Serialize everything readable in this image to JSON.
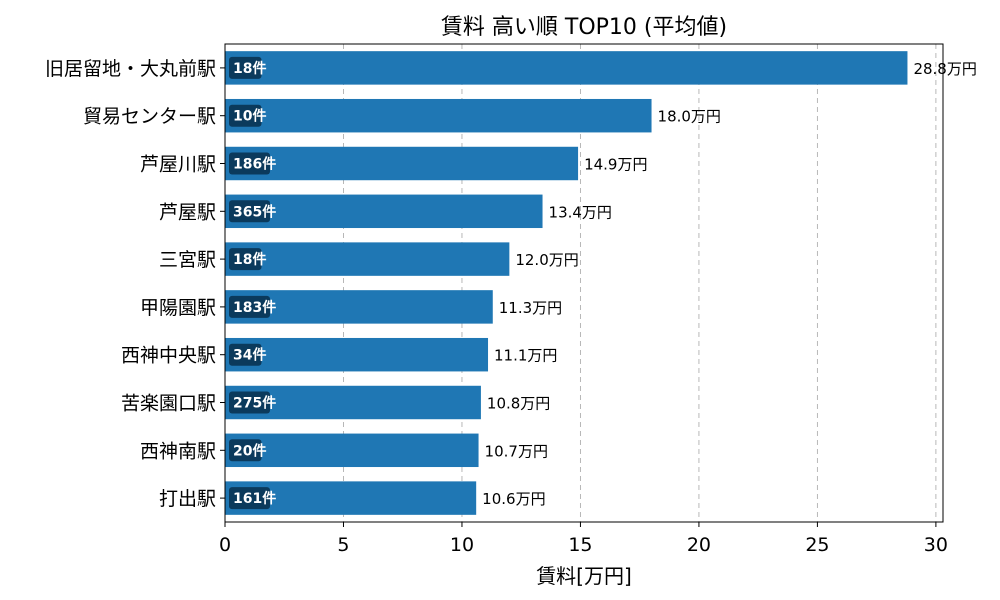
{
  "chart_data": {
    "type": "bar",
    "orientation": "horizontal",
    "title": "賃料 高い順 TOP10 (平均値)",
    "xlabel": "賃料[万円]",
    "ylabel": "",
    "xlim": [
      0,
      30.3
    ],
    "xticks": [
      "0",
      "5",
      "10",
      "15",
      "20",
      "25",
      "30"
    ],
    "grid": "x, dashed",
    "bar_color": "#1f77b4",
    "count_badge_color": "#0b3a5c",
    "categories": [
      "旧居留地・大丸前駅",
      "貿易センター駅",
      "芦屋川駅",
      "芦屋駅",
      "三宮駅",
      "甲陽園駅",
      "西神中央駅",
      "苦楽園口駅",
      "西神南駅",
      "打出駅"
    ],
    "values": [
      28.8,
      18.0,
      14.9,
      13.4,
      12.0,
      11.3,
      11.1,
      10.8,
      10.7,
      10.6
    ],
    "value_labels": [
      "28.8万円",
      "18.0万円",
      "14.9万円",
      "13.4万円",
      "12.0万円",
      "11.3万円",
      "11.1万円",
      "10.8万円",
      "10.7万円",
      "10.6万円"
    ],
    "count_labels": [
      "18件",
      "10件",
      "186件",
      "365件",
      "18件",
      "183件",
      "34件",
      "275件",
      "20件",
      "161件"
    ]
  }
}
